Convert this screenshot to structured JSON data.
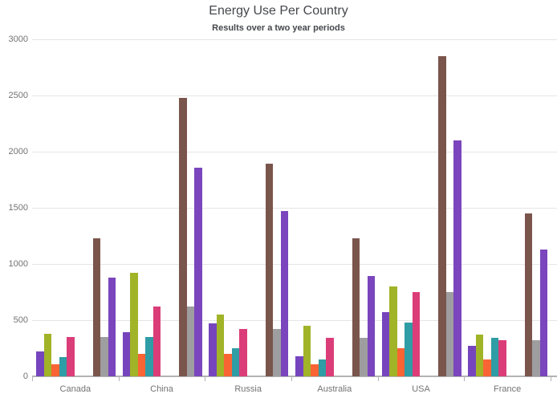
{
  "chart": {
    "title": "Energy Use Per Country",
    "subtitle": "Results over a two year periods"
  },
  "chart_data": {
    "type": "bar",
    "title": "Energy Use Per Country",
    "subtitle": "Results over a two year periods",
    "categories": [
      "Canada",
      "China",
      "Russia",
      "Australia",
      "USA",
      "France"
    ],
    "series": [
      {
        "name": "purple",
        "color": "#7645BD",
        "values": [
          220,
          390,
          470,
          180,
          570,
          270
        ]
      },
      {
        "name": "olive",
        "color": "#A1B327",
        "values": [
          380,
          920,
          550,
          450,
          800,
          370
        ]
      },
      {
        "name": "orange",
        "color": "#F96434",
        "values": [
          110,
          200,
          200,
          110,
          250,
          150
        ]
      },
      {
        "name": "teal",
        "color": "#2F9DA5",
        "values": [
          170,
          350,
          250,
          150,
          480,
          340
        ]
      },
      {
        "name": "pink",
        "color": "#DB3D78",
        "values": [
          350,
          620,
          420,
          340,
          750,
          320
        ]
      },
      {
        "name": "brown",
        "color": "#7A554C",
        "values": [
          1230,
          2480,
          1890,
          1230,
          2850,
          1450
        ]
      },
      {
        "name": "gray",
        "color": "#9E9DA0",
        "values": [
          350,
          620,
          420,
          340,
          750,
          320
        ]
      },
      {
        "name": "violet",
        "color": "#7A45BD",
        "values": [
          880,
          1860,
          1470,
          890,
          2100,
          1130
        ]
      }
    ],
    "y_axis": {
      "min": 0,
      "max": 3000,
      "interval": 500,
      "tick_labels": [
        "0",
        "500",
        "1000",
        "1500",
        "2000",
        "2500",
        "3000"
      ]
    },
    "grid": "horizontal-only",
    "legend": "none",
    "group_layout": "5 clustered bars, gap, 3 clustered bars per category",
    "colors": {
      "title_text": "#45474C",
      "axis_label_text": "#737373",
      "gridline": "#E5E5E5",
      "axis_line": "#B3B3B3",
      "background": "#FFFFFF"
    }
  }
}
